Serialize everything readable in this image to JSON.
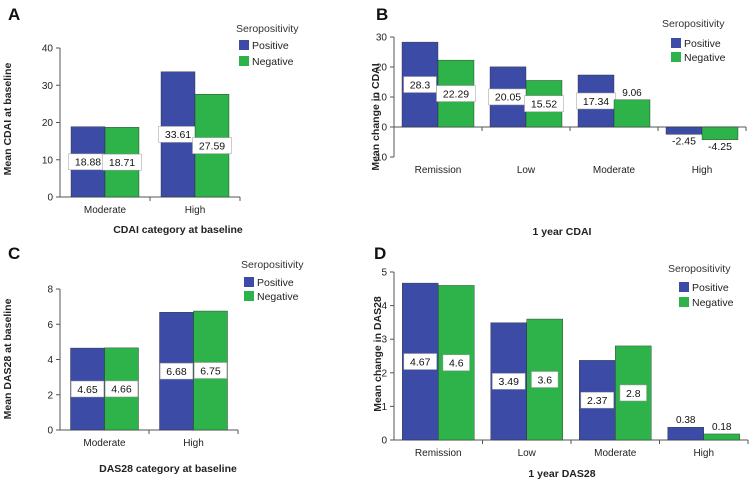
{
  "colors": {
    "positive": "#3C4BA6",
    "negative": "#2DB34A",
    "axis": "#555555",
    "label_box": "#ffffff"
  },
  "chart_data": [
    {
      "panel": "A",
      "type": "bar",
      "categories": [
        "Moderate",
        "High"
      ],
      "series": [
        {
          "name": "Positive",
          "values": [
            18.88,
            33.61
          ]
        },
        {
          "name": "Negative",
          "values": [
            18.71,
            27.59
          ]
        }
      ],
      "value_labels": [
        [
          "18.88",
          "33.61"
        ],
        [
          "18.71",
          "27.59"
        ]
      ],
      "legend_title": "Seropositivity",
      "xlabel": "CDAI category at baseline",
      "ylabel": "Mean CDAI at baseline",
      "ylim": [
        0,
        40
      ],
      "yticks": [
        0,
        10,
        20,
        30,
        40
      ],
      "ytick_labels": [
        "0",
        "10",
        "20",
        "30",
        "40"
      ]
    },
    {
      "panel": "B",
      "type": "bar",
      "categories": [
        "Remission",
        "Low",
        "Moderate",
        "High"
      ],
      "series": [
        {
          "name": "Positive",
          "values": [
            28.3,
            20.05,
            17.34,
            -2.45
          ]
        },
        {
          "name": "Negative",
          "values": [
            22.29,
            15.52,
            9.06,
            -4.25
          ]
        }
      ],
      "value_labels": [
        [
          "28.3",
          "20.05",
          "17.34",
          "-2.45"
        ],
        [
          "22.29",
          "15.52",
          "9.06",
          "-4.25"
        ]
      ],
      "legend_title": "Seropositivity",
      "xlabel": "1 year CDAI",
      "ylabel": "Mean change in CDAI",
      "ylim": [
        -10,
        30
      ],
      "yticks": [
        -10,
        0,
        10,
        20,
        30
      ],
      "ytick_labels": [
        "-10",
        "0",
        "10",
        "20",
        "30"
      ]
    },
    {
      "panel": "C",
      "type": "bar",
      "categories": [
        "Moderate",
        "High"
      ],
      "series": [
        {
          "name": "Positive",
          "values": [
            4.65,
            6.68
          ]
        },
        {
          "name": "Negative",
          "values": [
            4.66,
            6.75
          ]
        }
      ],
      "value_labels": [
        [
          "4.65",
          "6.68"
        ],
        [
          "4.66",
          "6.75"
        ]
      ],
      "legend_title": "Seropositivity",
      "xlabel": "DAS28 category at baseline",
      "ylabel": "Mean DAS28 at baseline",
      "ylim": [
        0,
        8
      ],
      "yticks": [
        0,
        2,
        4,
        6,
        8
      ],
      "ytick_labels": [
        "0",
        "2",
        "4",
        "6",
        "8"
      ]
    },
    {
      "panel": "D",
      "type": "bar",
      "categories": [
        "Remission",
        "Low",
        "Moderate",
        "High"
      ],
      "series": [
        {
          "name": "Positive",
          "values": [
            4.67,
            3.49,
            2.37,
            0.38
          ]
        },
        {
          "name": "Negative",
          "values": [
            4.6,
            3.6,
            2.8,
            0.18
          ]
        }
      ],
      "value_labels": [
        [
          "4.67",
          "3.49",
          "2.37",
          "0.38"
        ],
        [
          "4.6",
          "3.6",
          "2.8",
          "0.18"
        ]
      ],
      "legend_title": "Seropositivity",
      "xlabel": "1 year DAS28",
      "ylabel": "Mean change in DAS28",
      "ylim": [
        0,
        5
      ],
      "yticks": [
        0,
        1,
        2,
        3,
        4,
        5
      ],
      "ytick_labels": [
        "0",
        "1",
        "2",
        "3",
        "4",
        "5"
      ]
    }
  ]
}
